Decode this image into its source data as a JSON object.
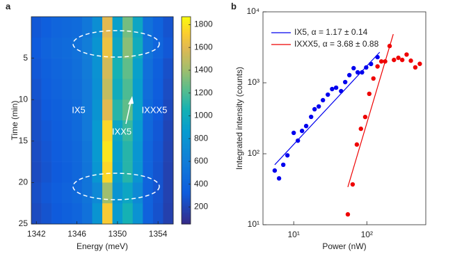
{
  "chart_data": [
    {
      "type": "heatmap",
      "panel_label": "a",
      "xlabel": "Energy (meV)",
      "ylabel": "Time (min)",
      "x_bins": [
        1341.5,
        1342.5,
        1343.5,
        1344.5,
        1345.5,
        1346.5,
        1347.5,
        1348.5,
        1349.5,
        1350.5,
        1351.5,
        1352.5,
        1353.5,
        1354.5,
        1355.5
      ],
      "y_bins": [
        0,
        2.5,
        5,
        7.5,
        10,
        12.5,
        15,
        17.5,
        20,
        22.5,
        25
      ],
      "values": [
        [
          300,
          350,
          400,
          420,
          450,
          550,
          750,
          1600,
          900,
          1300,
          950,
          500,
          380,
          280
        ],
        [
          320,
          380,
          420,
          450,
          500,
          600,
          800,
          1650,
          950,
          1350,
          1000,
          520,
          400,
          300
        ],
        [
          300,
          360,
          400,
          430,
          480,
          580,
          780,
          1550,
          1050,
          1250,
          900,
          480,
          360,
          260
        ],
        [
          280,
          340,
          380,
          420,
          460,
          560,
          760,
          1500,
          1000,
          1200,
          880,
          460,
          340,
          240
        ],
        [
          260,
          320,
          360,
          400,
          450,
          560,
          800,
          1600,
          1100,
          1250,
          900,
          440,
          320,
          220
        ],
        [
          250,
          300,
          340,
          380,
          440,
          560,
          850,
          1750,
          950,
          1150,
          850,
          420,
          300,
          200
        ],
        [
          240,
          290,
          330,
          370,
          420,
          540,
          850,
          1800,
          900,
          1100,
          820,
          400,
          290,
          190
        ],
        [
          230,
          280,
          320,
          360,
          410,
          520,
          820,
          1750,
          880,
          1100,
          800,
          390,
          280,
          180
        ],
        [
          250,
          300,
          340,
          380,
          430,
          520,
          700,
          1400,
          800,
          950,
          700,
          380,
          280,
          180
        ],
        [
          230,
          280,
          320,
          360,
          400,
          500,
          800,
          1700,
          850,
          1050,
          780,
          370,
          270,
          170
        ]
      ],
      "xlim": [
        1341.5,
        1355.5
      ],
      "xticks": [
        1342,
        1346,
        1350,
        1354
      ],
      "ylim": [
        25,
        0
      ],
      "yticks": [
        5,
        10,
        15,
        20,
        25
      ],
      "colormap": "parula",
      "clim": [
        50,
        1870
      ],
      "cticks": [
        200,
        400,
        600,
        800,
        1000,
        1200,
        1400,
        1600,
        1800
      ],
      "annotations": [
        "IX5",
        "IXX5",
        "IXXX5"
      ]
    },
    {
      "type": "scatter",
      "panel_label": "b",
      "xlabel": "Power (nW)",
      "ylabel": "Integrated intensity (counts)",
      "xscale": "log",
      "yscale": "log",
      "xlim": [
        3.8,
        640
      ],
      "ylim": [
        10,
        10000
      ],
      "xticks": [
        {
          "value": 10,
          "label": "10¹"
        },
        {
          "value": 100,
          "label": "10²"
        }
      ],
      "yticks": [
        {
          "value": 10,
          "label": "10¹"
        },
        {
          "value": 100,
          "label": "10²"
        },
        {
          "value": 1000,
          "label": "10³"
        },
        {
          "value": 10000,
          "label": "10⁴"
        }
      ],
      "legend": "upper left",
      "series": [
        {
          "name": "IX5, α = 1.17 ± 0.14",
          "color": "#0000ee",
          "x": [
            5.5,
            6.3,
            7.2,
            8.2,
            10,
            11.4,
            13,
            14.8,
            17.3,
            19.3,
            22,
            25.1,
            29.3,
            33.5,
            38,
            44.5,
            50.6,
            57.7,
            66,
            75,
            86,
            98,
            114,
            140
          ],
          "values": [
            58,
            45,
            70,
            95,
            197,
            153,
            210,
            246,
            331,
            424,
            464,
            569,
            681,
            816,
            853,
            763,
            1023,
            1282,
            1607,
            1403,
            1403,
            1644,
            1842,
            2300
          ],
          "fit_x": [
            5.5,
            150
          ],
          "fit_values": [
            70,
            2700
          ]
        },
        {
          "name": "IXXX5, α = 3.68 ± 0.88",
          "color": "#ee0000",
          "x": [
            55,
            64,
            73,
            83,
            95,
            108,
            123,
            140,
            158,
            178,
            205,
            235,
            270,
            305,
            350,
            400,
            460,
            530
          ],
          "values": [
            14,
            37,
            135,
            225,
            330,
            700,
            1150,
            1700,
            2000,
            2000,
            3300,
            2100,
            2250,
            2100,
            2500,
            2050,
            1650,
            1850
          ],
          "fit_x": [
            55,
            230
          ],
          "fit_values": [
            34,
            4850
          ]
        }
      ]
    }
  ]
}
